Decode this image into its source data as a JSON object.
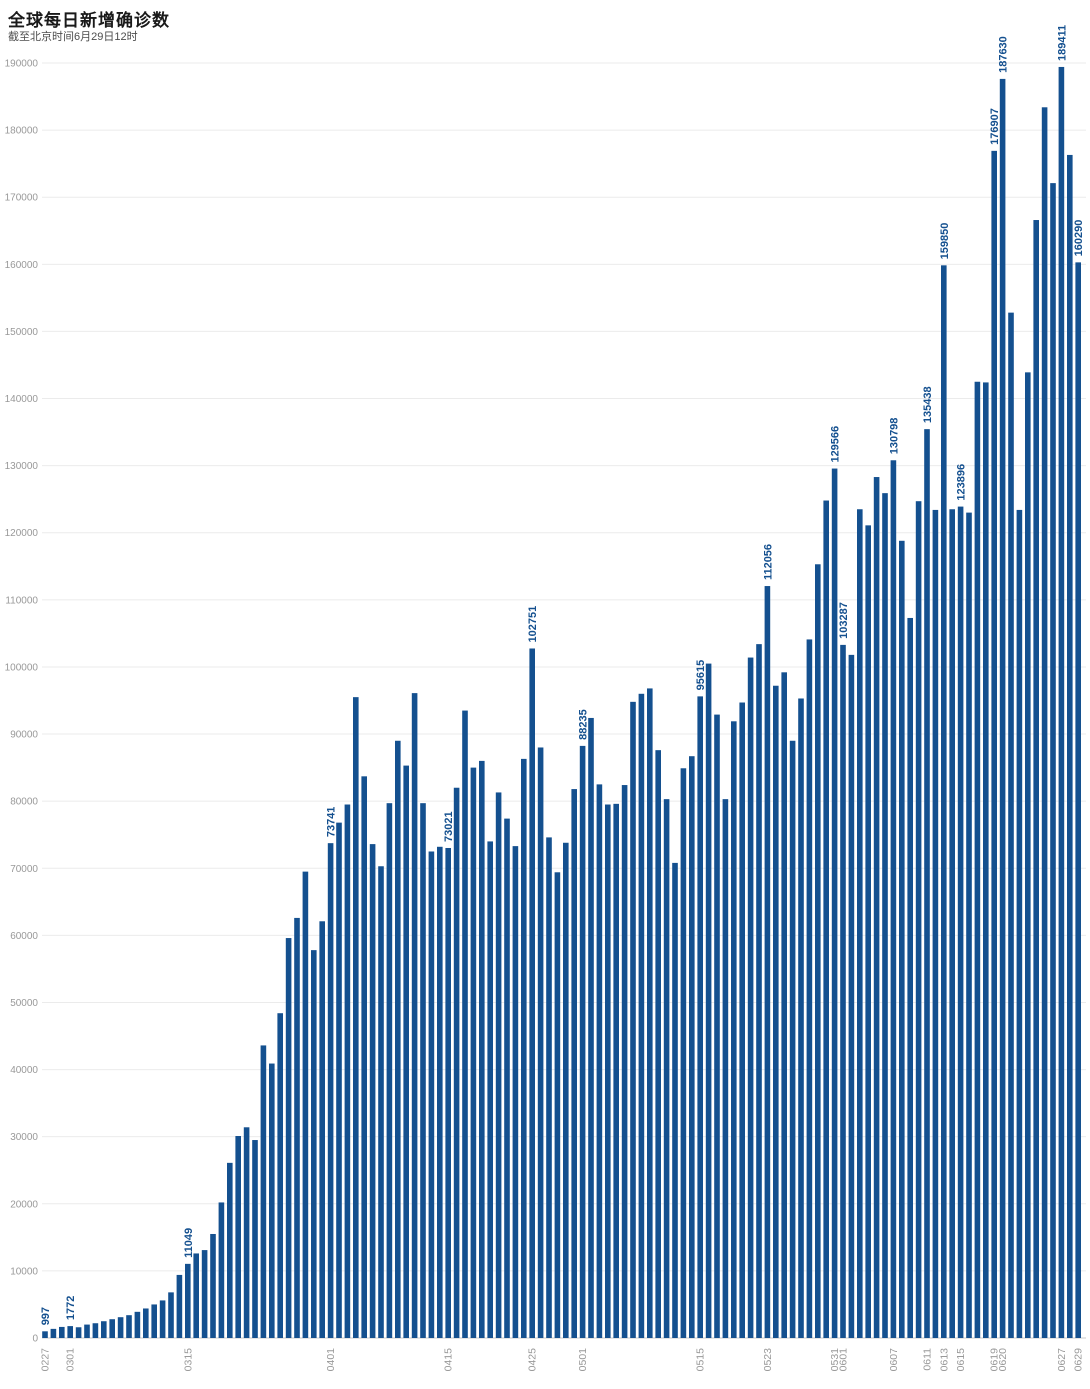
{
  "header": {
    "title": "全球每日新增确诊数",
    "subtitle": "截至北京时间6月29日12时"
  },
  "chart_data": {
    "type": "bar",
    "title": "全球每日新增确诊数",
    "subtitle": "截至北京时间6月29日12时",
    "xlabel": "",
    "ylabel": "",
    "ylim": [
      0,
      190000
    ],
    "y_tick_step": 10000,
    "grid": true,
    "legend": "none",
    "bar_color": "#14508f",
    "value_label_color": "#14508f",
    "axis_text_color": "#999999",
    "gridline_color": "#ebebeb",
    "baseline_color": "#c9c9c9",
    "x": [
      "0227",
      "0228",
      "0229",
      "0301",
      "0302",
      "0303",
      "0304",
      "0305",
      "0306",
      "0307",
      "0308",
      "0309",
      "0310",
      "0311",
      "0312",
      "0313",
      "0314",
      "0315",
      "0316",
      "0317",
      "0318",
      "0319",
      "0320",
      "0321",
      "0322",
      "0323",
      "0324",
      "0325",
      "0326",
      "0327",
      "0328",
      "0329",
      "0330",
      "0331",
      "0401",
      "0402",
      "0403",
      "0404",
      "0405",
      "0406",
      "0407",
      "0408",
      "0409",
      "0410",
      "0411",
      "0412",
      "0413",
      "0414",
      "0415",
      "0416",
      "0417",
      "0418",
      "0419",
      "0420",
      "0421",
      "0422",
      "0423",
      "0424",
      "0425",
      "0426",
      "0427",
      "0428",
      "0429",
      "0430",
      "0501",
      "0502",
      "0503",
      "0504",
      "0505",
      "0506",
      "0507",
      "0508",
      "0509",
      "0510",
      "0511",
      "0512",
      "0513",
      "0514",
      "0515",
      "0516",
      "0517",
      "0518",
      "0519",
      "0520",
      "0521",
      "0522",
      "0523",
      "0524",
      "0525",
      "0526",
      "0527",
      "0528",
      "0529",
      "0530",
      "0531",
      "0601",
      "0602",
      "0603",
      "0604",
      "0605",
      "0606",
      "0607",
      "0608",
      "0609",
      "0610",
      "0611",
      "0612",
      "0613",
      "0614",
      "0615",
      "0616",
      "0617",
      "0618",
      "0619",
      "0620",
      "0621",
      "0622",
      "0623",
      "0624",
      "0625",
      "0626",
      "0627",
      "0628",
      "0629"
    ],
    "values": [
      997,
      1360,
      1650,
      1772,
      1600,
      2000,
      2200,
      2500,
      2800,
      3100,
      3400,
      3900,
      4400,
      5000,
      5600,
      6800,
      9400,
      11049,
      12600,
      13100,
      15500,
      20200,
      26100,
      30100,
      31400,
      29500,
      43600,
      40900,
      48400,
      59600,
      62600,
      69500,
      57800,
      62100,
      73741,
      76800,
      79500,
      95500,
      83700,
      73600,
      70300,
      79700,
      89000,
      85300,
      96100,
      79700,
      72500,
      73200,
      73021,
      82000,
      93500,
      85000,
      86000,
      74000,
      81300,
      77400,
      73300,
      86300,
      102751,
      88000,
      74600,
      69400,
      73800,
      81800,
      88235,
      92400,
      82500,
      79500,
      79600,
      82400,
      94800,
      96000,
      96800,
      87600,
      80300,
      70800,
      84900,
      86700,
      95615,
      100500,
      92900,
      80300,
      91900,
      94700,
      101400,
      103400,
      112056,
      97200,
      99200,
      89000,
      95300,
      104100,
      115300,
      124800,
      129566,
      103287,
      101800,
      123500,
      121100,
      128300,
      125900,
      130798,
      118800,
      107300,
      124700,
      135438,
      123400,
      159850,
      123500,
      123896,
      123000,
      142500,
      142400,
      176907,
      187630,
      152800,
      123400,
      143900,
      166600,
      183400,
      172100,
      189411,
      176300,
      160290
    ],
    "x_ticks": [
      "0227",
      "0301",
      "0315",
      "0401",
      "0415",
      "0425",
      "0501",
      "0515",
      "0523",
      "0531",
      "0601",
      "0607",
      "0611",
      "0613",
      "0615",
      "0619",
      "0620",
      "0627",
      "0629"
    ],
    "labeled_values": {
      "0227": 997,
      "0301": 1772,
      "0315": 11049,
      "0401": 73741,
      "0415": 73021,
      "0425": 102751,
      "0501": 88235,
      "0515": 95615,
      "0523": 112056,
      "0531": 129566,
      "0601": 103287,
      "0607": 130798,
      "0611": 135438,
      "0613": 159850,
      "0615": 123896,
      "0619": 176907,
      "0620": 187630,
      "0627": 189411,
      "0629": 160290
    },
    "y_tick_labels": [
      "0",
      "10000",
      "20000",
      "30000",
      "40000",
      "50000",
      "60000",
      "70000",
      "80000",
      "90000",
      "100000",
      "110000",
      "120000",
      "130000",
      "140000",
      "150000",
      "160000",
      "170000",
      "180000",
      "190000"
    ]
  }
}
